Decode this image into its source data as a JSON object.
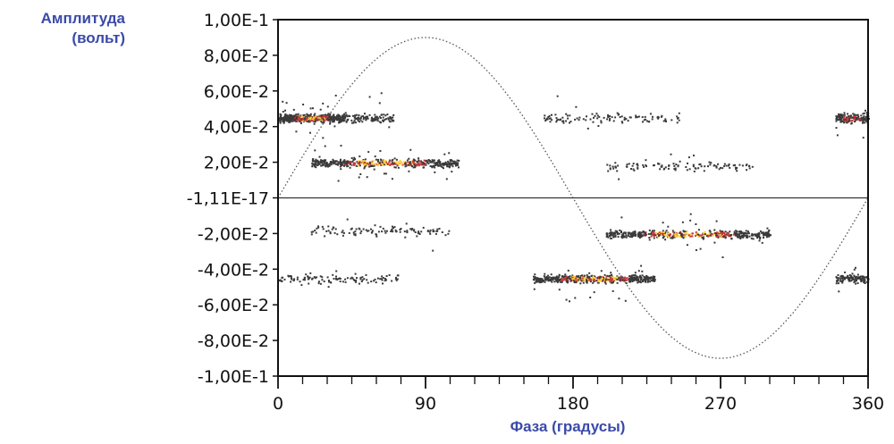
{
  "chart_data": {
    "type": "scatter",
    "subtype": "phase-resolved partial discharge density pattern",
    "title": "",
    "ylabel_line1": "Амплитуда",
    "ylabel_line2": "(вольт)",
    "xlabel": "Фаза (градусы)",
    "xlim": [
      0,
      360
    ],
    "ylim": [
      -0.1,
      0.1
    ],
    "x_ticks": [
      "0",
      "90",
      "180",
      "270",
      "360"
    ],
    "x_tick_values": [
      0,
      90,
      180,
      270,
      360
    ],
    "y_ticks": [
      "1,00E-1",
      "8,00E-2",
      "6,00E-2",
      "4,00E-2",
      "2,00E-2",
      "-1,11E-17",
      "-2,00E-2",
      "-4,00E-2",
      "-6,00E-2",
      "-8,00E-2",
      "-1,00E-1"
    ],
    "y_tick_values": [
      0.1,
      0.08,
      0.06,
      0.04,
      0.02,
      0,
      -0.02,
      -0.04,
      -0.06,
      -0.08,
      -0.1
    ],
    "zero_line": 0,
    "reference_sine": {
      "amplitude": 0.09,
      "style": "dotted"
    },
    "grid": false,
    "colors": {
      "low": "#3a3a3a",
      "mid": "#c83a3a",
      "high": "#ffd23a",
      "axis_label": "#3a4aa8"
    },
    "clusters": [
      {
        "phase": [
          0,
          40
        ],
        "amplitude": 0.045,
        "density": "high"
      },
      {
        "phase": [
          20,
          110
        ],
        "amplitude": 0.02,
        "density": "high"
      },
      {
        "phase": [
          40,
          70
        ],
        "amplitude": 0.045,
        "density": "low"
      },
      {
        "phase": [
          160,
          245
        ],
        "amplitude": 0.045,
        "density": "low"
      },
      {
        "phase": [
          200,
          290
        ],
        "amplitude": 0.018,
        "density": "low"
      },
      {
        "phase": [
          340,
          360
        ],
        "amplitude": 0.045,
        "density": "medium"
      },
      {
        "phase": [
          0,
          75
        ],
        "amplitude": -0.045,
        "density": "low"
      },
      {
        "phase": [
          20,
          105
        ],
        "amplitude": -0.018,
        "density": "low"
      },
      {
        "phase": [
          155,
          230
        ],
        "amplitude": -0.045,
        "density": "high"
      },
      {
        "phase": [
          200,
          300
        ],
        "amplitude": -0.02,
        "density": "high"
      },
      {
        "phase": [
          340,
          360
        ],
        "amplitude": -0.045,
        "density": "low"
      }
    ]
  }
}
